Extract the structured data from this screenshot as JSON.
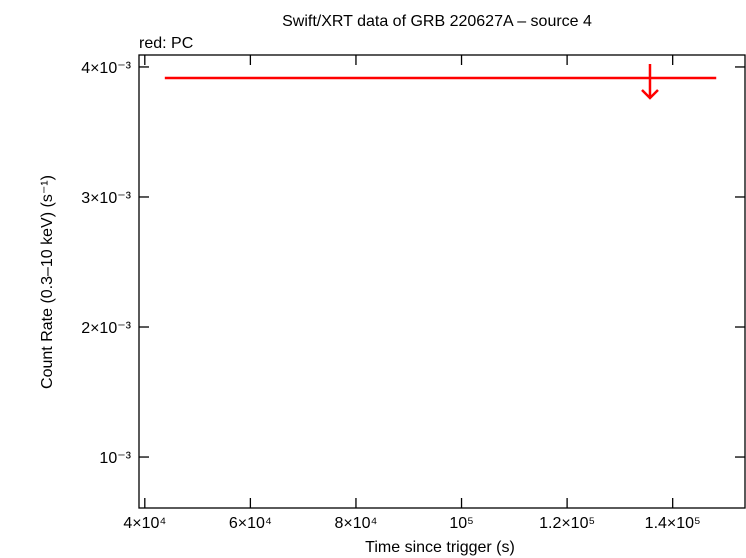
{
  "chart_data": {
    "type": "upper_limit",
    "title": "Swift/XRT data of GRB 220627A – source 4",
    "subtitle": "red: PC",
    "x_label": "Time since trigger (s)",
    "y_label": "Count Rate (0.3–10 keV) (s⁻¹)",
    "xlim": [
      38900,
      153700
    ],
    "ylim": [
      0.000608,
      0.004092
    ],
    "xticks": [
      {
        "value": 40000,
        "label": "4×10⁴"
      },
      {
        "value": 60000,
        "label": "6×10⁴"
      },
      {
        "value": 80000,
        "label": "8×10⁴"
      },
      {
        "value": 100000,
        "label": "10⁵"
      },
      {
        "value": 120000,
        "label": "1.2×10⁵"
      },
      {
        "value": 140000,
        "label": "1.4×10⁵"
      }
    ],
    "yticks": [
      {
        "value": 0.001,
        "label": "10⁻³"
      },
      {
        "value": 0.002,
        "label": "2×10⁻³"
      },
      {
        "value": 0.003,
        "label": "3×10⁻³"
      },
      {
        "value": 0.004,
        "label": "4×10⁻³"
      }
    ],
    "series": [
      {
        "color": "#ff0000",
        "x": [
          135700
        ],
        "x_low": [
          43790
        ],
        "x_high": [
          148250
        ],
        "values": [
          0.003915
        ],
        "upper_limit": true
      }
    ]
  }
}
